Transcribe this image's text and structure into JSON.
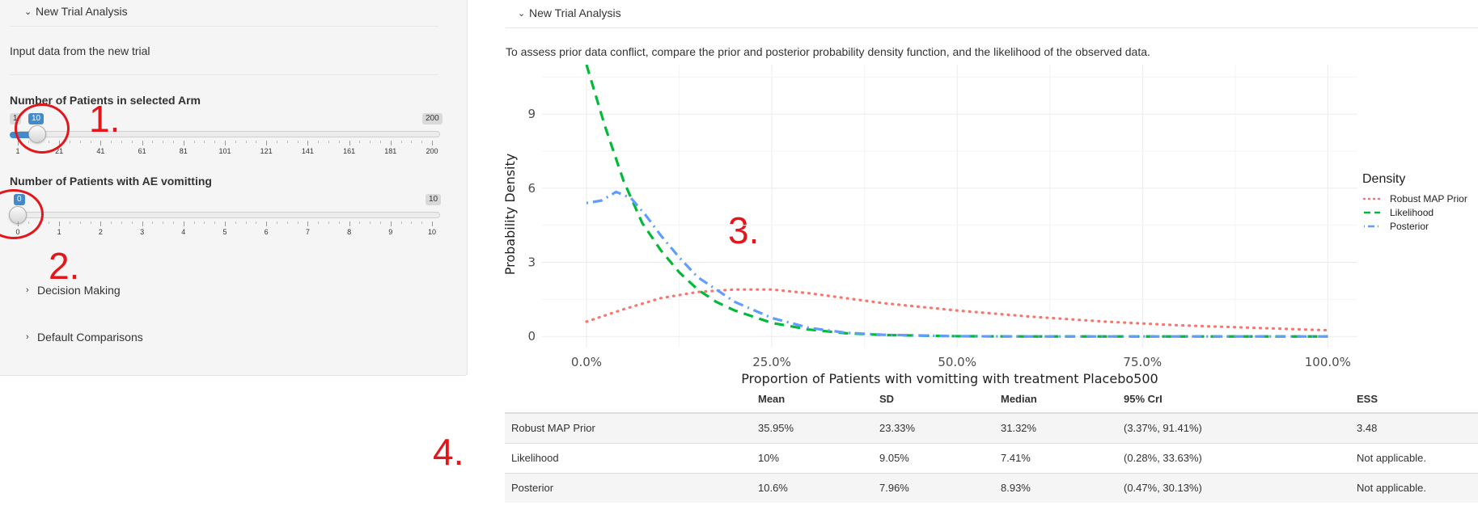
{
  "sidebar": {
    "new_trial_heading": "New Trial Analysis",
    "input_text": "Input data from the new trial",
    "slider1": {
      "label": "Number of Patients in selected Arm",
      "min_label": "1",
      "max_label": "200",
      "value": "10",
      "ticks": [
        "1",
        "21",
        "41",
        "61",
        "81",
        "101",
        "121",
        "141",
        "161",
        "181",
        "200"
      ]
    },
    "slider2": {
      "label": "Number of Patients with AE vomitting",
      "max_label": "10",
      "value": "0",
      "ticks": [
        "0",
        "1",
        "2",
        "3",
        "4",
        "5",
        "6",
        "7",
        "8",
        "9",
        "10"
      ]
    },
    "decision_making": "Decision Making",
    "default_comparisons": "Default Comparisons"
  },
  "annotations": {
    "a1": "1.",
    "a2": "2.",
    "a3": "3.",
    "a4": "4."
  },
  "main": {
    "heading": "New Trial Analysis",
    "description": "To assess prior data conflict, compare the prior and posterior probability density function, and the likelihood of the observed data."
  },
  "chart_data": {
    "type": "line",
    "xlabel": "Proportion of Patients with vomitting with treatment Placebo500",
    "ylabel": "Probability Density",
    "x_ticks": [
      "0.0%",
      "25.0%",
      "50.0%",
      "75.0%",
      "100.0%"
    ],
    "y_ticks": [
      "0",
      "3",
      "6",
      "9"
    ],
    "xlim": [
      0,
      1
    ],
    "ylim": [
      0,
      11
    ],
    "legend_title": "Density",
    "legend_position": "right",
    "grid": true,
    "colors": {
      "prior": "#f8766d",
      "likelihood": "#00ba38",
      "posterior": "#619cff"
    },
    "series": [
      {
        "name": "Robust MAP Prior",
        "style": "dotted",
        "x": [
          0,
          0.05,
          0.1,
          0.15,
          0.2,
          0.25,
          0.3,
          0.35,
          0.4,
          0.5,
          0.6,
          0.7,
          0.8,
          0.9,
          1.0
        ],
        "y": [
          0.6,
          1.1,
          1.55,
          1.8,
          1.9,
          1.9,
          1.75,
          1.55,
          1.35,
          1.05,
          0.8,
          0.6,
          0.45,
          0.35,
          0.25
        ]
      },
      {
        "name": "Likelihood",
        "style": "dashed",
        "x": [
          0,
          0.025,
          0.05,
          0.075,
          0.1,
          0.125,
          0.15,
          0.175,
          0.2,
          0.25,
          0.3,
          0.35,
          0.4,
          0.5,
          0.6,
          0.8,
          1.0
        ],
        "y": [
          11,
          8.5,
          6.3,
          4.6,
          3.5,
          2.6,
          1.9,
          1.4,
          1.05,
          0.55,
          0.28,
          0.13,
          0.06,
          0.01,
          0,
          0,
          0
        ]
      },
      {
        "name": "Posterior",
        "style": "dotdash",
        "x": [
          0,
          0.02,
          0.04,
          0.06,
          0.08,
          0.1,
          0.125,
          0.15,
          0.2,
          0.25,
          0.3,
          0.35,
          0.4,
          0.5,
          0.6,
          0.8,
          1.0
        ],
        "y": [
          5.4,
          5.5,
          5.85,
          5.6,
          4.9,
          4.1,
          3.2,
          2.4,
          1.4,
          0.75,
          0.35,
          0.15,
          0.07,
          0.01,
          0,
          0,
          0
        ]
      }
    ]
  },
  "table": {
    "headers": [
      "",
      "Mean",
      "SD",
      "Median",
      "95% CrI",
      "ESS"
    ],
    "rows": [
      [
        "Robust MAP Prior",
        "35.95%",
        "23.33%",
        "31.32%",
        "(3.37%, 91.41%)",
        "3.48"
      ],
      [
        "Likelihood",
        "10%",
        "9.05%",
        "7.41%",
        "(0.28%, 33.63%)",
        "Not applicable."
      ],
      [
        "Posterior",
        "10.6%",
        "7.96%",
        "8.93%",
        "(0.47%, 30.13%)",
        "Not applicable."
      ]
    ]
  }
}
